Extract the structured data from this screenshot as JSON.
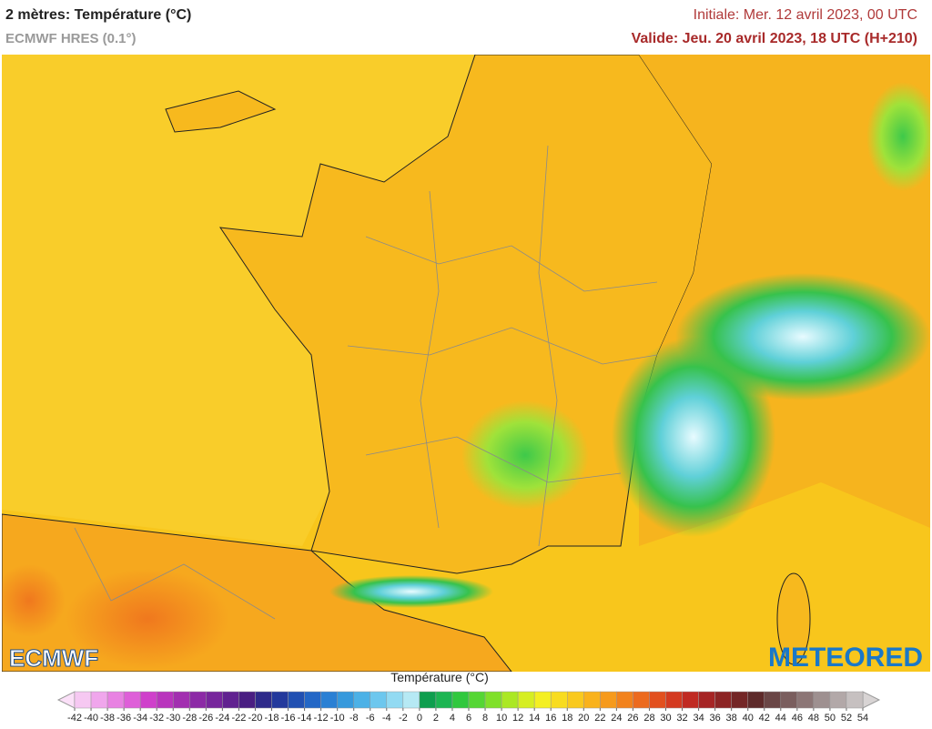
{
  "header": {
    "title": "2 mètres: Température (°C)",
    "model": "ECMWF HRES (0.1°)",
    "initial": "Initiale: Mer. 12 avril 2023, 00 UTC",
    "valid": "Valide: Jeu. 20 avril 2023, 18 UTC (H+210)"
  },
  "logos": {
    "left": "ECMWF",
    "right": "METEORED"
  },
  "colorbar": {
    "label": "Température (°C)",
    "ticks": [
      -42,
      -40,
      -38,
      -36,
      -34,
      -32,
      -30,
      -28,
      -26,
      -24,
      -22,
      -20,
      -18,
      -16,
      -14,
      -12,
      -10,
      -8,
      -6,
      -4,
      -2,
      0,
      2,
      4,
      6,
      8,
      10,
      12,
      14,
      16,
      18,
      20,
      22,
      24,
      26,
      28,
      30,
      32,
      34,
      36,
      38,
      40,
      42,
      44,
      46,
      48,
      50,
      52,
      54
    ],
    "colors": [
      "#f6c8f2",
      "#f0a6ec",
      "#e882e2",
      "#de5fd8",
      "#cf40cb",
      "#b935bd",
      "#a22fb0",
      "#8c2aa6",
      "#77269c",
      "#612290",
      "#4a1e82",
      "#2e2a8a",
      "#23399c",
      "#2150b2",
      "#2367c6",
      "#2a80d4",
      "#3699dc",
      "#4cb1e6",
      "#6dc7ee",
      "#92daf2",
      "#b6e9f4",
      "#0e9e4e",
      "#1cb552",
      "#30c83e",
      "#55d634",
      "#80e02a",
      "#abe824",
      "#d6ee22",
      "#f4ef22",
      "#f8dc20",
      "#f9c91e",
      "#f9b21c",
      "#f69a1c",
      "#f2821c",
      "#ec6a1e",
      "#e2501e",
      "#d43a20",
      "#c02a22",
      "#a62424",
      "#8c2424",
      "#742626",
      "#5e2a2a",
      "#6a4646",
      "#7a5e5e",
      "#8c7676",
      "#9e9090",
      "#b2a8a8",
      "#c6c0c0"
    ]
  }
}
